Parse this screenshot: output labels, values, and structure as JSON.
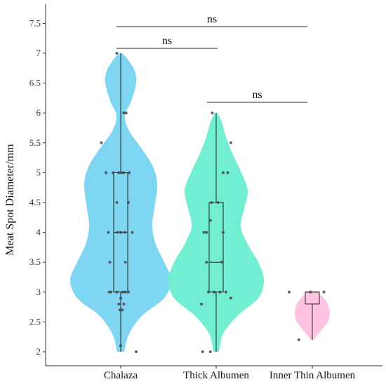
{
  "chart_data": {
    "type": "violin",
    "ylabel": "Meat Spot Diameter/mm",
    "xlabel": "",
    "ylim": [
      1.9,
      7.75
    ],
    "yticks": [
      {
        "value": 2,
        "label": "2"
      },
      {
        "value": 2.5,
        "label": "2.5"
      },
      {
        "value": 3,
        "label": "3"
      },
      {
        "value": 3.5,
        "label": "3.5"
      },
      {
        "value": 4,
        "label": "4"
      },
      {
        "value": 4.5,
        "label": "4.5"
      },
      {
        "value": 5,
        "label": "5"
      },
      {
        "value": 5.5,
        "label": "5.5"
      },
      {
        "value": 6,
        "label": "6"
      },
      {
        "value": 6.5,
        "label": "6.5"
      },
      {
        "value": 7,
        "label": "7"
      },
      {
        "value": 7.5,
        "label": "7.5"
      }
    ],
    "grid": false,
    "legend": "none",
    "categories": [
      "Chalaza",
      "Thick Albumen",
      "Inner Thin Albumen"
    ],
    "groups": [
      {
        "name": "Chalaza",
        "color": "#7fd6f3",
        "min": 2.0,
        "q1": 3.0,
        "median": 4.0,
        "q3": 5.0,
        "max": 7.0,
        "density": [
          [
            2.0,
            0.05
          ],
          [
            2.3,
            0.12
          ],
          [
            2.6,
            0.3
          ],
          [
            2.9,
            0.62
          ],
          [
            3.2,
            0.72
          ],
          [
            3.5,
            0.62
          ],
          [
            3.8,
            0.5
          ],
          [
            4.1,
            0.45
          ],
          [
            4.4,
            0.48
          ],
          [
            4.8,
            0.52
          ],
          [
            5.1,
            0.46
          ],
          [
            5.4,
            0.3
          ],
          [
            5.7,
            0.12
          ],
          [
            5.95,
            0.06
          ],
          [
            6.2,
            0.15
          ],
          [
            6.5,
            0.22
          ],
          [
            6.7,
            0.2
          ],
          [
            6.9,
            0.1
          ],
          [
            7.0,
            0.02
          ]
        ],
        "points": [
          [
            3.0,
            -0.25
          ],
          [
            3.0,
            -0.1
          ],
          [
            3.0,
            0.05
          ],
          [
            3.0,
            0.2
          ],
          [
            3.0,
            -0.3
          ],
          [
            3.0,
            0.12
          ],
          [
            2.9,
            0.0
          ],
          [
            2.8,
            -0.05
          ],
          [
            2.7,
            -0.02
          ],
          [
            2.7,
            0.04
          ],
          [
            2.8,
            0.08
          ],
          [
            3.5,
            -0.28
          ],
          [
            3.5,
            0.12
          ],
          [
            4.0,
            -0.32
          ],
          [
            4.0,
            -0.08
          ],
          [
            4.0,
            0.1
          ],
          [
            4.0,
            0.3
          ],
          [
            4.0,
            0.0
          ],
          [
            4.5,
            -0.1
          ],
          [
            4.5,
            0.2
          ],
          [
            5.0,
            -0.38
          ],
          [
            5.0,
            -0.2
          ],
          [
            5.0,
            -0.05
          ],
          [
            5.0,
            0.08
          ],
          [
            5.0,
            0.22
          ],
          [
            5.0,
            0.02
          ],
          [
            5.5,
            -0.5
          ],
          [
            6.0,
            0.08
          ],
          [
            6.0,
            0.14
          ],
          [
            7.0,
            -0.1
          ],
          [
            2.1,
            0.0
          ],
          [
            2.0,
            0.4
          ]
        ]
      },
      {
        "name": "Thick Albumen",
        "color": "#72eed3",
        "min": 2.0,
        "q1": 3.0,
        "median": 3.5,
        "q3": 4.5,
        "max": 6.0,
        "density": [
          [
            2.0,
            0.04
          ],
          [
            2.3,
            0.1
          ],
          [
            2.6,
            0.3
          ],
          [
            2.9,
            0.6
          ],
          [
            3.2,
            0.68
          ],
          [
            3.5,
            0.6
          ],
          [
            3.8,
            0.45
          ],
          [
            4.1,
            0.35
          ],
          [
            4.4,
            0.4
          ],
          [
            4.7,
            0.45
          ],
          [
            5.0,
            0.36
          ],
          [
            5.3,
            0.24
          ],
          [
            5.6,
            0.14
          ],
          [
            5.85,
            0.08
          ],
          [
            6.0,
            0.02
          ]
        ],
        "points": [
          [
            3.0,
            -0.2
          ],
          [
            3.0,
            -0.05
          ],
          [
            3.0,
            0.1
          ],
          [
            3.0,
            0.25
          ],
          [
            2.8,
            -0.38
          ],
          [
            2.9,
            0.38
          ],
          [
            3.5,
            -0.25
          ],
          [
            3.5,
            0.15
          ],
          [
            4.0,
            -0.25
          ],
          [
            4.0,
            0.18
          ],
          [
            4.2,
            -0.15
          ],
          [
            4.5,
            -0.12
          ],
          [
            4.5,
            0.05
          ],
          [
            5.0,
            0.18
          ],
          [
            5.0,
            0.3
          ],
          [
            5.5,
            0.38
          ],
          [
            6.0,
            -0.1
          ],
          [
            4.0,
            -0.32
          ],
          [
            2.0,
            -0.35
          ],
          [
            2.0,
            -0.15
          ]
        ]
      },
      {
        "name": "Inner Thin Albumen",
        "color": "#ffc2e2",
        "min": 2.2,
        "q1": 2.8,
        "median": 3.0,
        "q3": 3.0,
        "max": 3.0,
        "density": [
          [
            2.2,
            0.02
          ],
          [
            2.35,
            0.12
          ],
          [
            2.5,
            0.22
          ],
          [
            2.65,
            0.25
          ],
          [
            2.8,
            0.22
          ],
          [
            2.95,
            0.12
          ],
          [
            3.0,
            0.05
          ]
        ],
        "points": [
          [
            3.0,
            -0.6
          ],
          [
            3.0,
            -0.05
          ],
          [
            3.0,
            0.3
          ],
          [
            2.2,
            -0.35
          ]
        ]
      }
    ],
    "significance": [
      {
        "from": 0,
        "to": 2,
        "label": "ns",
        "level": 7.6
      },
      {
        "from": 0,
        "to": 1,
        "label": "ns",
        "level": 7.1
      },
      {
        "from": 1,
        "to": 2,
        "label": "ns",
        "level": 6.2
      }
    ]
  }
}
